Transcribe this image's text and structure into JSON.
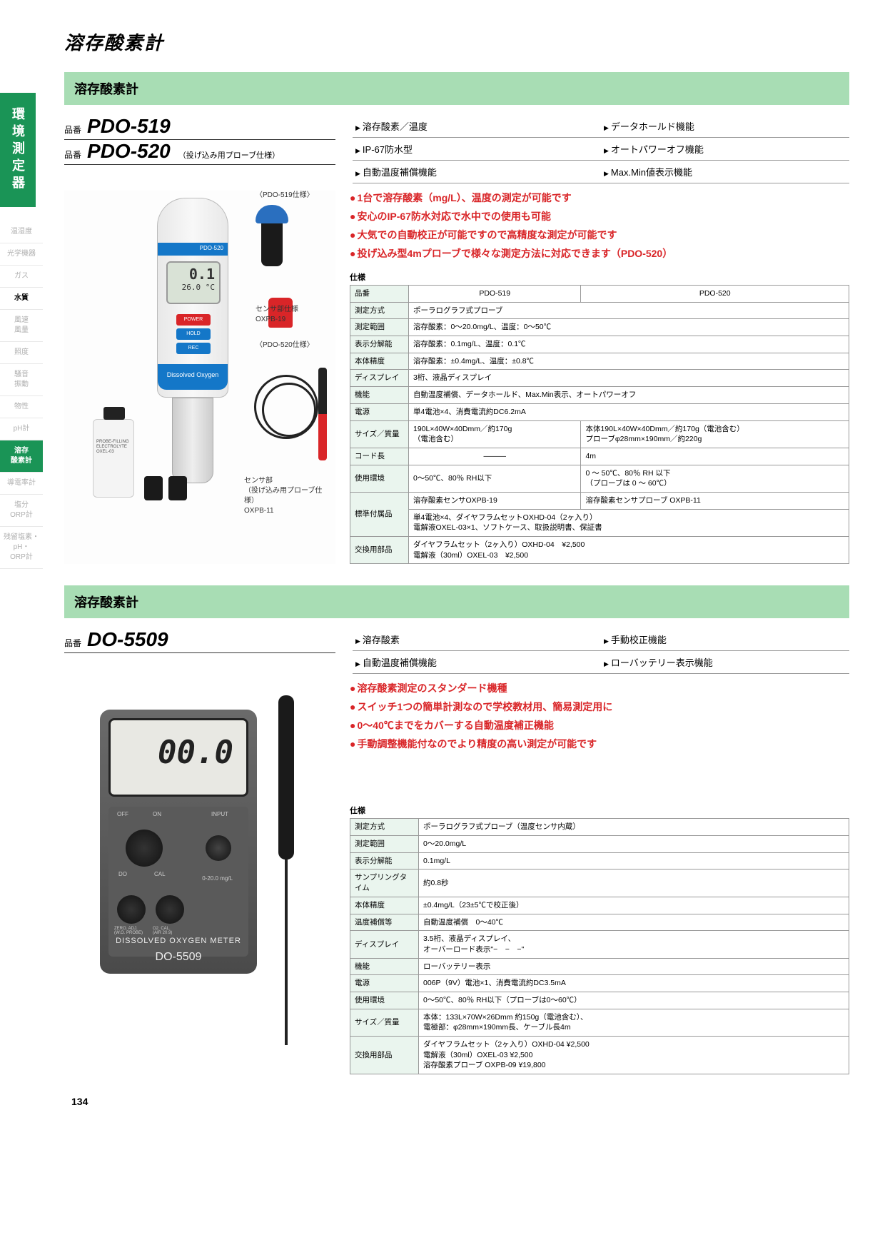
{
  "page_number": "134",
  "page_title": "溶存酸素計",
  "sidebar": {
    "vertical_tab": "環境測定器",
    "items": [
      {
        "label": "温湿度",
        "state": ""
      },
      {
        "label": "光学機器",
        "state": ""
      },
      {
        "label": "ガス",
        "state": ""
      },
      {
        "label": "水質",
        "state": "active-black"
      },
      {
        "label": "風速\n風量",
        "state": ""
      },
      {
        "label": "照度",
        "state": ""
      },
      {
        "label": "騒音\n振動",
        "state": ""
      },
      {
        "label": "物性",
        "state": ""
      },
      {
        "label": "pH計",
        "state": ""
      },
      {
        "label": "溶存\n酸素計",
        "state": "active-green"
      },
      {
        "label": "導電率計",
        "state": ""
      },
      {
        "label": "塩分\nORP計",
        "state": ""
      },
      {
        "label": "残留塩素・\npH・\nORP計",
        "state": ""
      }
    ]
  },
  "product1": {
    "section_title": "溶存酸素計",
    "model_label": "品番",
    "models": [
      {
        "code": "PDO-519",
        "note": ""
      },
      {
        "code": "PDO-520",
        "note": "（投げ込み用プローブ仕様）"
      }
    ],
    "tags": [
      "溶存酸素／温度",
      "データホールド機能",
      "IP-67防水型",
      "オートパワーオフ機能",
      "自動温度補償機能",
      "Max.Min値表示機能"
    ],
    "highlights": [
      "1台で溶存酸素（mg/L）、温度の測定が可能です",
      "安心のIP-67防水対応で水中での使用も可能",
      "大気での自動校正が可能ですので高精度な測定が可能です",
      "投げ込み型4mプローブで様々な測定方法に対応できます（PDO-520）"
    ],
    "image": {
      "ann_519": "〈PDO-519仕様〉",
      "ann_sensor": "センサ部仕様\nOXPB-19",
      "ann_520": "〈PDO-520仕様〉",
      "ann_probe": "センサ部\n（投げ込み用プローブ仕様）\nOXPB-11",
      "device_brand": "PDO-520",
      "lcd_main": "0.1",
      "lcd_sub": "26.0 °C",
      "btn_power": "POWER",
      "btn_hold": "HOLD",
      "btn_rec": "REC",
      "foot_text": "Dissolved Oxygen",
      "bottle_label": "PROBE-FILLING\nELECTROLYTE\nOXEL-03"
    },
    "spec_title": "仕様",
    "spec": {
      "header": [
        "品番",
        "PDO-519",
        "PDO-520"
      ],
      "rows": [
        {
          "th": "測定方式",
          "td": [
            "ポーラログラフ式プローブ"
          ],
          "span": 2
        },
        {
          "th": "測定範囲",
          "td": [
            "溶存酸素：0～20.0mg/L、温度：0～50℃"
          ],
          "span": 2
        },
        {
          "th": "表示分解能",
          "td": [
            "溶存酸素：0.1mg/L、温度：0.1℃"
          ],
          "span": 2
        },
        {
          "th": "本体精度",
          "td": [
            "溶存酸素：±0.4mg/L、温度：±0.8℃"
          ],
          "span": 2
        },
        {
          "th": "ディスプレイ",
          "td": [
            "3桁、液晶ディスプレイ"
          ],
          "span": 2
        },
        {
          "th": "機能",
          "td": [
            "自動温度補償、データホールド、Max.Min表示、オートパワーオフ"
          ],
          "span": 2
        },
        {
          "th": "電源",
          "td": [
            "単4電池×4、消費電流約DC6.2mA"
          ],
          "span": 2
        },
        {
          "th": "サイズ／質量",
          "td": [
            "190L×40W×40Dmm／約170g\n（電池含む）",
            "本体190L×40W×40Dmm／約170g（電池含む）\nプローブφ28mm×190mm／約220g"
          ]
        },
        {
          "th": "コード長",
          "td": [
            "―――",
            "4m"
          ]
        },
        {
          "th": "使用環境",
          "td": [
            "0～50℃、80％ RH以下",
            "0 ～ 50℃、80％ RH 以下\n（プローブは 0 ～ 60℃）"
          ]
        },
        {
          "th": "標準付属品",
          "td_multi": [
            [
              "溶存酸素センサOXPB-19",
              "溶存酸素センサプローブ OXPB-11"
            ],
            [
              "単4電池×4、ダイヤフラムセットOXHD-04（2ヶ入り）\n電解液OXEL-03×1、ソフトケース、取扱説明書、保証書"
            ]
          ]
        },
        {
          "th": "交換用部品",
          "td": [
            "ダイヤフラムセット（2ヶ入り）OXHD-04　¥2,500\n電解液（30ml）OXEL-03　¥2,500"
          ],
          "span": 2
        }
      ]
    }
  },
  "product2": {
    "section_title": "溶存酸素計",
    "model_label": "品番",
    "model_code": "DO-5509",
    "tags": [
      "溶存酸素",
      "手動校正機能",
      "自動温度補償機能",
      "ローバッテリー表示機能"
    ],
    "highlights": [
      "溶存酸素測定のスタンダード機種",
      "スイッチ1つの簡単計測なので学校教材用、簡易測定用に",
      "0～40℃までをカバーする自動温度補正機能",
      "手動調整機能付なのでより精度の高い測定が可能です"
    ],
    "image": {
      "lcd": "00.0",
      "title": "DISSOLVED OXYGEN METER",
      "model": "DO-5509",
      "lbl_off": "OFF",
      "lbl_on": "ON",
      "lbl_input": "INPUT",
      "lbl_do": "DO",
      "lbl_cal": "CAL",
      "lbl_zero": "ZERO. ADJ.\n(W.O. PROBE)",
      "lbl_o2": "O2. CAL.\n(AIR 20.9)",
      "lbl_range": "0-20.0 mg/L"
    },
    "spec_title": "仕様",
    "spec": {
      "rows": [
        {
          "th": "測定方式",
          "td": "ポーラログラフ式プローブ（温度センサ内蔵）"
        },
        {
          "th": "測定範囲",
          "td": "0～20.0mg/L"
        },
        {
          "th": "表示分解能",
          "td": "0.1mg/L"
        },
        {
          "th": "サンプリングタイム",
          "td": "約0.8秒"
        },
        {
          "th": "本体精度",
          "td": "±0.4mg/L（23±5℃で校正後）"
        },
        {
          "th": "温度補償等",
          "td": "自動温度補償　0～40℃"
        },
        {
          "th": "ディスプレイ",
          "td": "3.5桁、液晶ディスプレイ、\nオーバーロード表示\"−　−　−\""
        },
        {
          "th": "機能",
          "td": "ローバッテリー表示"
        },
        {
          "th": "電源",
          "td": "006P（9V）電池×1、消費電流約DC3.5mA"
        },
        {
          "th": "使用環境",
          "td": "0～50℃、80％ RH以下（プローブは0～60℃）"
        },
        {
          "th": "サイズ／質量",
          "td": "本体：133L×70W×26Dmm 約150g（電池含む）、\n電極部：φ28mm×190mm長、ケーブル長4m"
        },
        {
          "th": "交換用部品",
          "td": "ダイヤフラムセット（2ヶ入り）OXHD-04 ¥2,500\n電解液（30ml）OXEL-03 ¥2,500\n溶存酸素プローブ OXPB-09 ¥19,800"
        }
      ]
    }
  }
}
